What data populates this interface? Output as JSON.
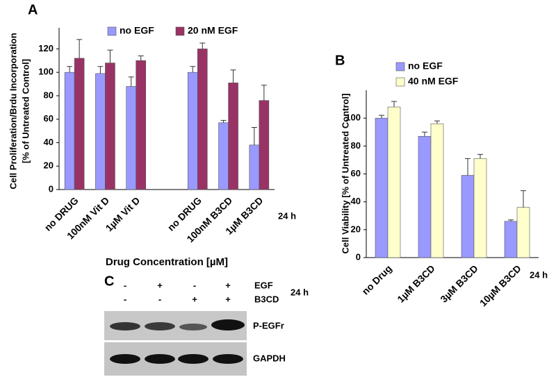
{
  "chart_data": [
    {
      "type": "bar",
      "panel": "A",
      "ylabel": [
        "Cell Proliferation/Brdu Incorporation",
        "[% of Untreated Control]"
      ],
      "xlabel": "Drug Concentration [µM]",
      "annotation": "24 h",
      "categories": [
        "no DRUG",
        "100nM Vit D",
        "1µM Vit D",
        null,
        "no DRUG",
        "100nM B3CD",
        "1µM B3CD"
      ],
      "series": [
        {
          "name": "no EGF",
          "color": "#9999ff",
          "values": [
            100,
            99,
            88,
            null,
            100,
            57,
            38
          ],
          "errors": [
            5,
            6,
            8,
            null,
            5,
            2,
            15
          ]
        },
        {
          "name": "20 nM EGF",
          "color": "#993366",
          "values": [
            112,
            108,
            110,
            null,
            120,
            91,
            76
          ],
          "errors": [
            16,
            11,
            4,
            null,
            5,
            11,
            13
          ]
        }
      ],
      "ylim": [
        0,
        138
      ],
      "yticks": [
        0,
        20,
        40,
        60,
        80,
        100,
        120
      ],
      "legend": "top"
    },
    {
      "type": "bar",
      "panel": "B",
      "ylabel": [
        "Cell Viability [% of Untreated Control]"
      ],
      "annotation": "24 h",
      "categories": [
        "no Drug",
        "1µM  B3CD",
        "3µM B3CD",
        "10µM B3CD"
      ],
      "series": [
        {
          "name": "no EGF",
          "color": "#9999ff",
          "values": [
            100,
            87,
            59,
            26
          ],
          "errors": [
            2,
            3,
            12,
            1
          ]
        },
        {
          "name": "40 nM EGF",
          "color": "#ffffcc",
          "values": [
            108,
            96,
            71,
            36
          ],
          "errors": [
            4,
            2,
            3,
            12
          ]
        }
      ],
      "ylim": [
        0,
        120
      ],
      "yticks": [
        0,
        20,
        40,
        60,
        80,
        100
      ],
      "legend": "top-left"
    }
  ],
  "panel_c": {
    "label": "C",
    "egf_row": {
      "label": "EGF",
      "signs": [
        "-",
        "+",
        "-",
        "+"
      ]
    },
    "b3cd_row": {
      "label": "B3CD",
      "signs": [
        "-",
        "-",
        "+",
        "+"
      ]
    },
    "time": "24 h",
    "bands": [
      "P-EGFr",
      "GAPDH"
    ]
  }
}
